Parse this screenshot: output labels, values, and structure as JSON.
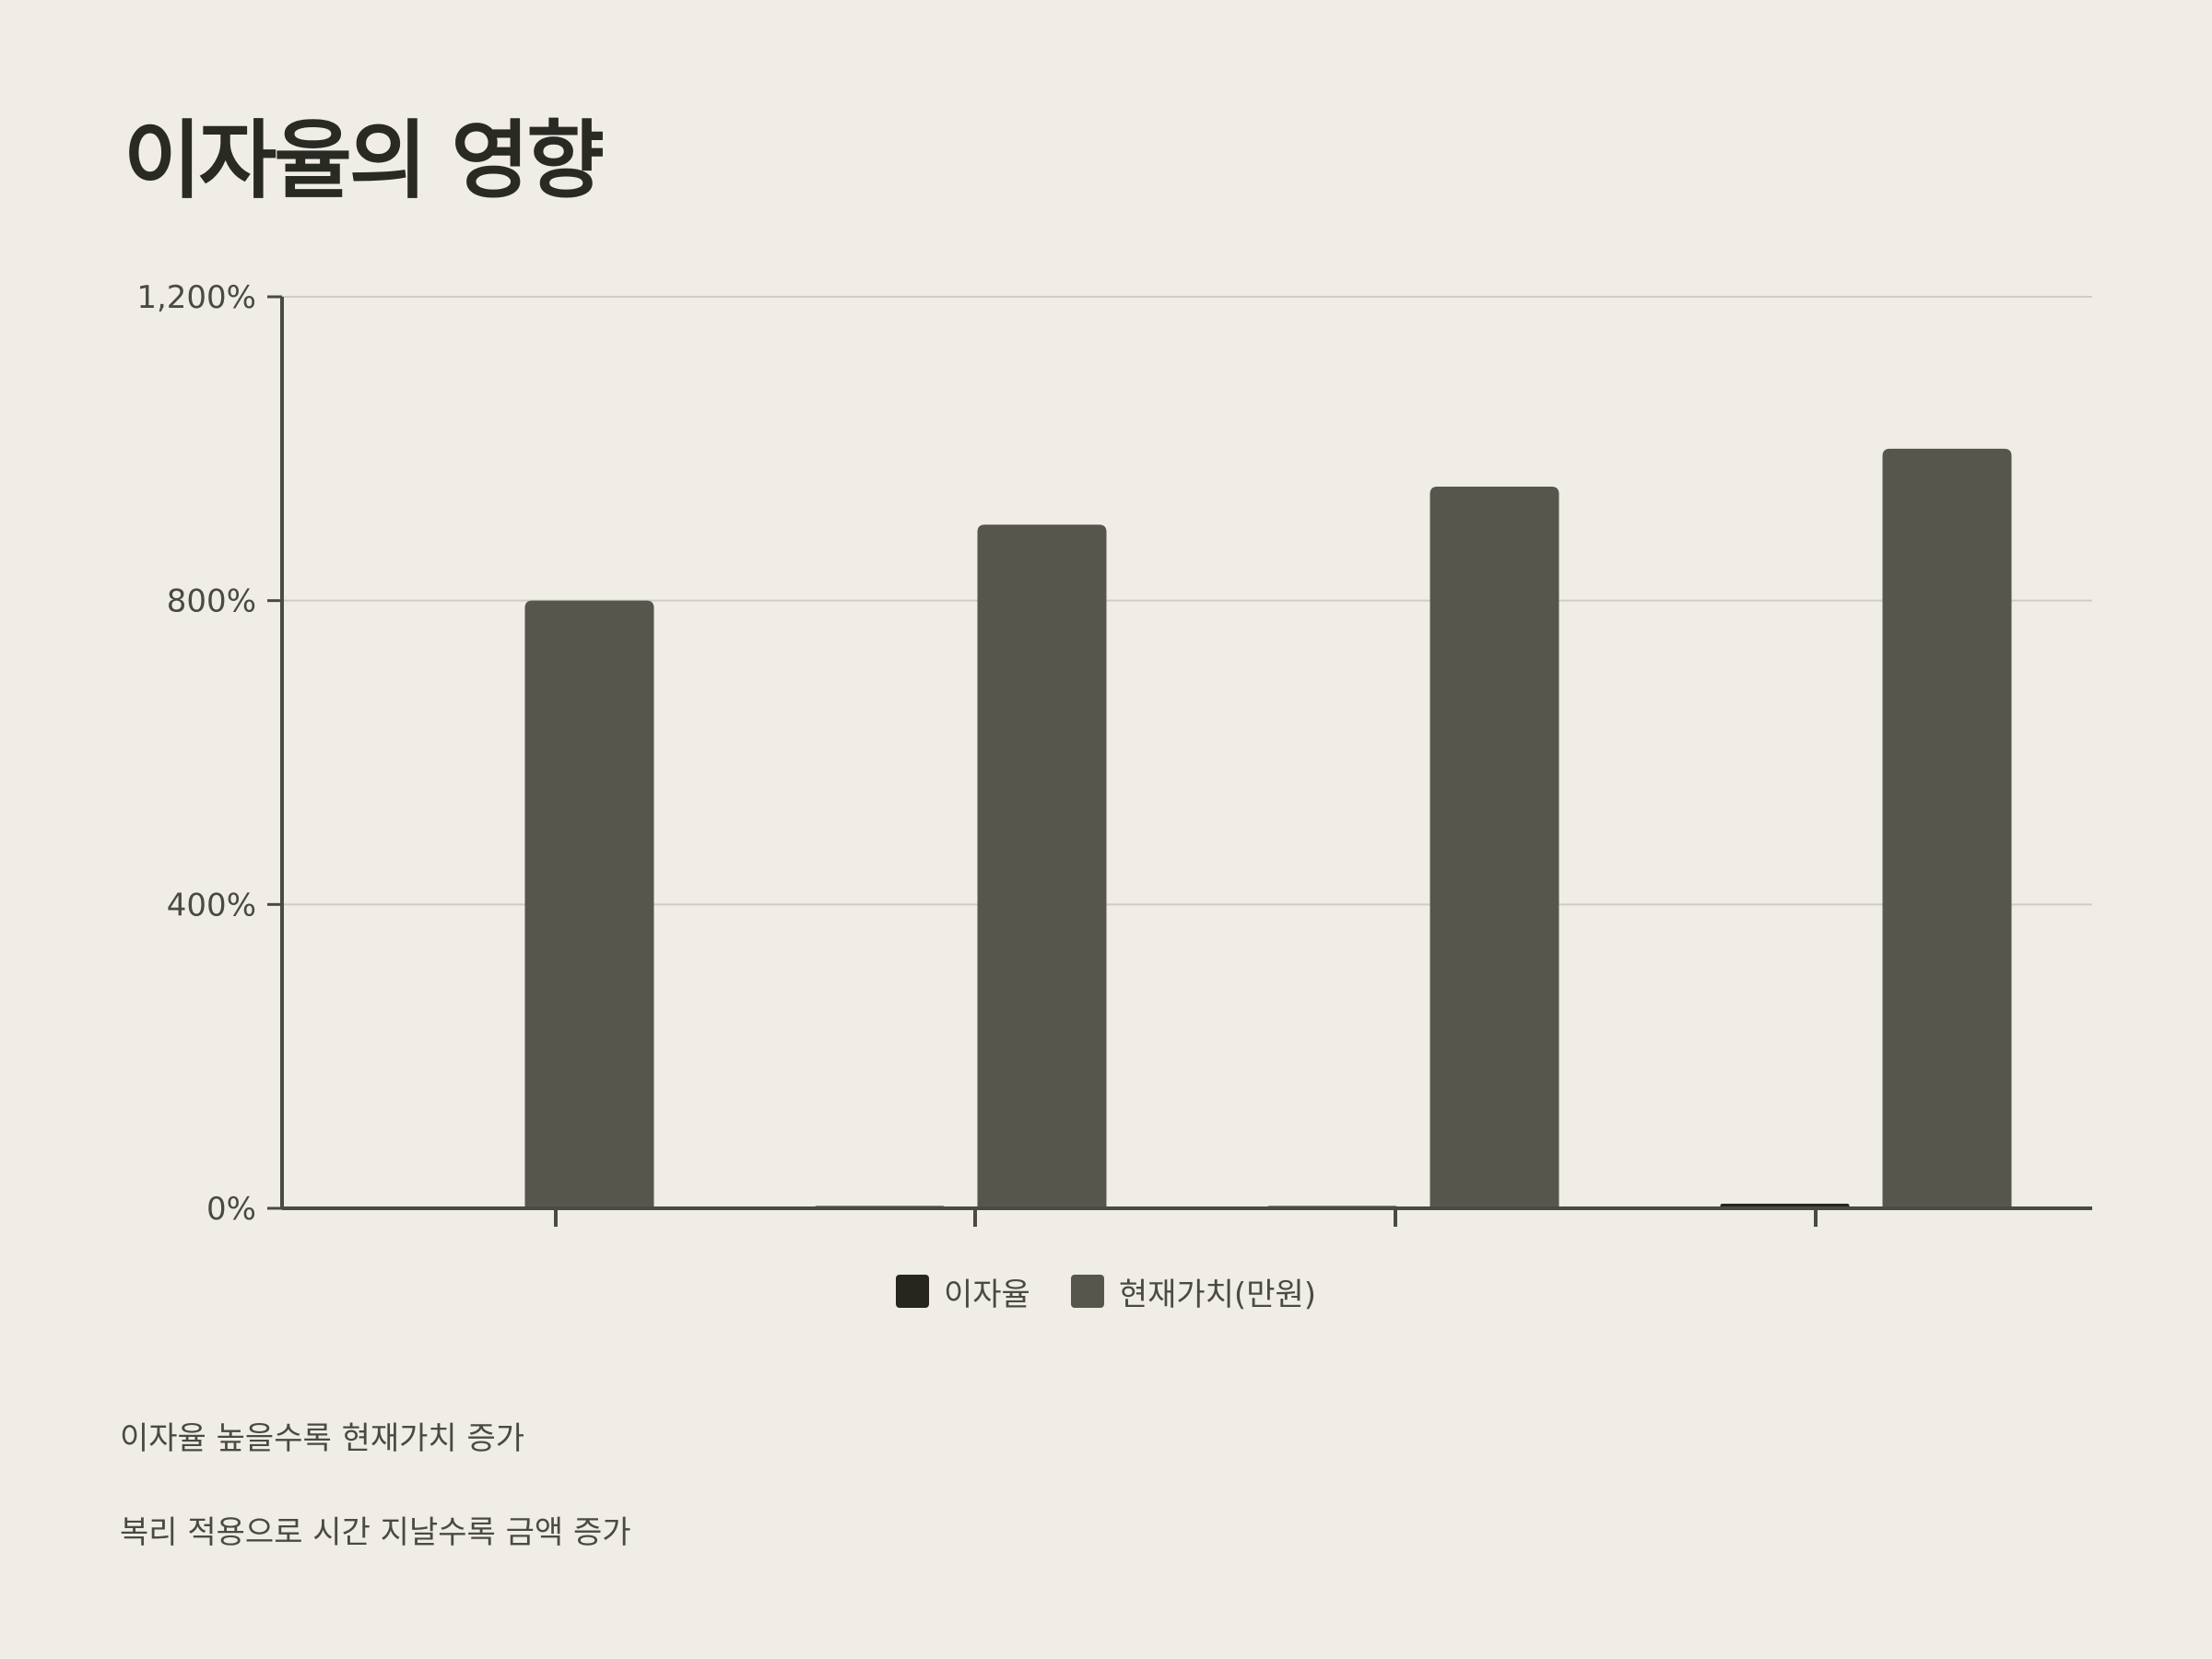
{
  "title": "이자율의 영향",
  "colors": {
    "background": "#f0ede6",
    "series_rate": "#26261f",
    "series_pv": "#57564d",
    "axis": "#4a4a44",
    "grid": "#cfccc5"
  },
  "notes": [
    "이자율 높을수록 현재가치 증가",
    "복리 적용으로 시간 지날수록 금액 증가"
  ],
  "chart_data": {
    "type": "bar",
    "categories": [
      "",
      "",
      "",
      ""
    ],
    "series": [
      {
        "name": "이자율",
        "values": [
          0,
          3,
          3,
          6
        ]
      },
      {
        "name": "현재가치(만원)",
        "values": [
          800,
          900,
          950,
          1000
        ]
      }
    ],
    "ylim": [
      0,
      1200
    ],
    "yticks": [
      0,
      400,
      800,
      1200
    ],
    "ytick_labels": [
      "0%",
      "400%",
      "800%",
      "1,200%"
    ],
    "grid": true,
    "legend_position": "bottom-center"
  }
}
